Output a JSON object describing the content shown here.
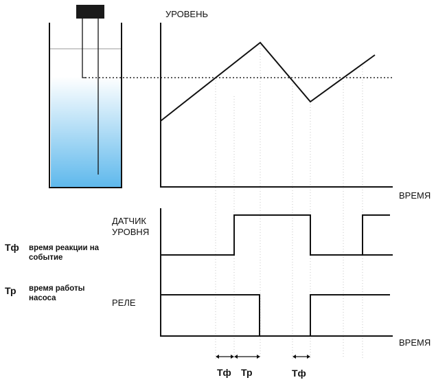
{
  "labels": {
    "level_axis": "УРОВЕНЬ",
    "time_axis_top": "ВРЕМЯ",
    "time_axis_bottom": "ВРЕМЯ",
    "sensor_line1": "ДАТЧИК",
    "sensor_line2": "УРОВНЯ",
    "relay": "РЕЛЕ",
    "tf_marker_1": "Тф",
    "tp_marker": "Тр",
    "tf_marker_2": "Тф"
  },
  "legend": {
    "tf_symbol": "Тф",
    "tf_desc_line1": "время реакции на",
    "tf_desc_line2": "событие",
    "tp_symbol": "Тр",
    "tp_desc_line1": "время работы",
    "tp_desc_line2": "насоса"
  },
  "colors": {
    "liquid_top": "#ffffff",
    "liquid_bottom": "#5eb8ec",
    "line": "#111111",
    "guide": "#bdbdbd"
  }
}
